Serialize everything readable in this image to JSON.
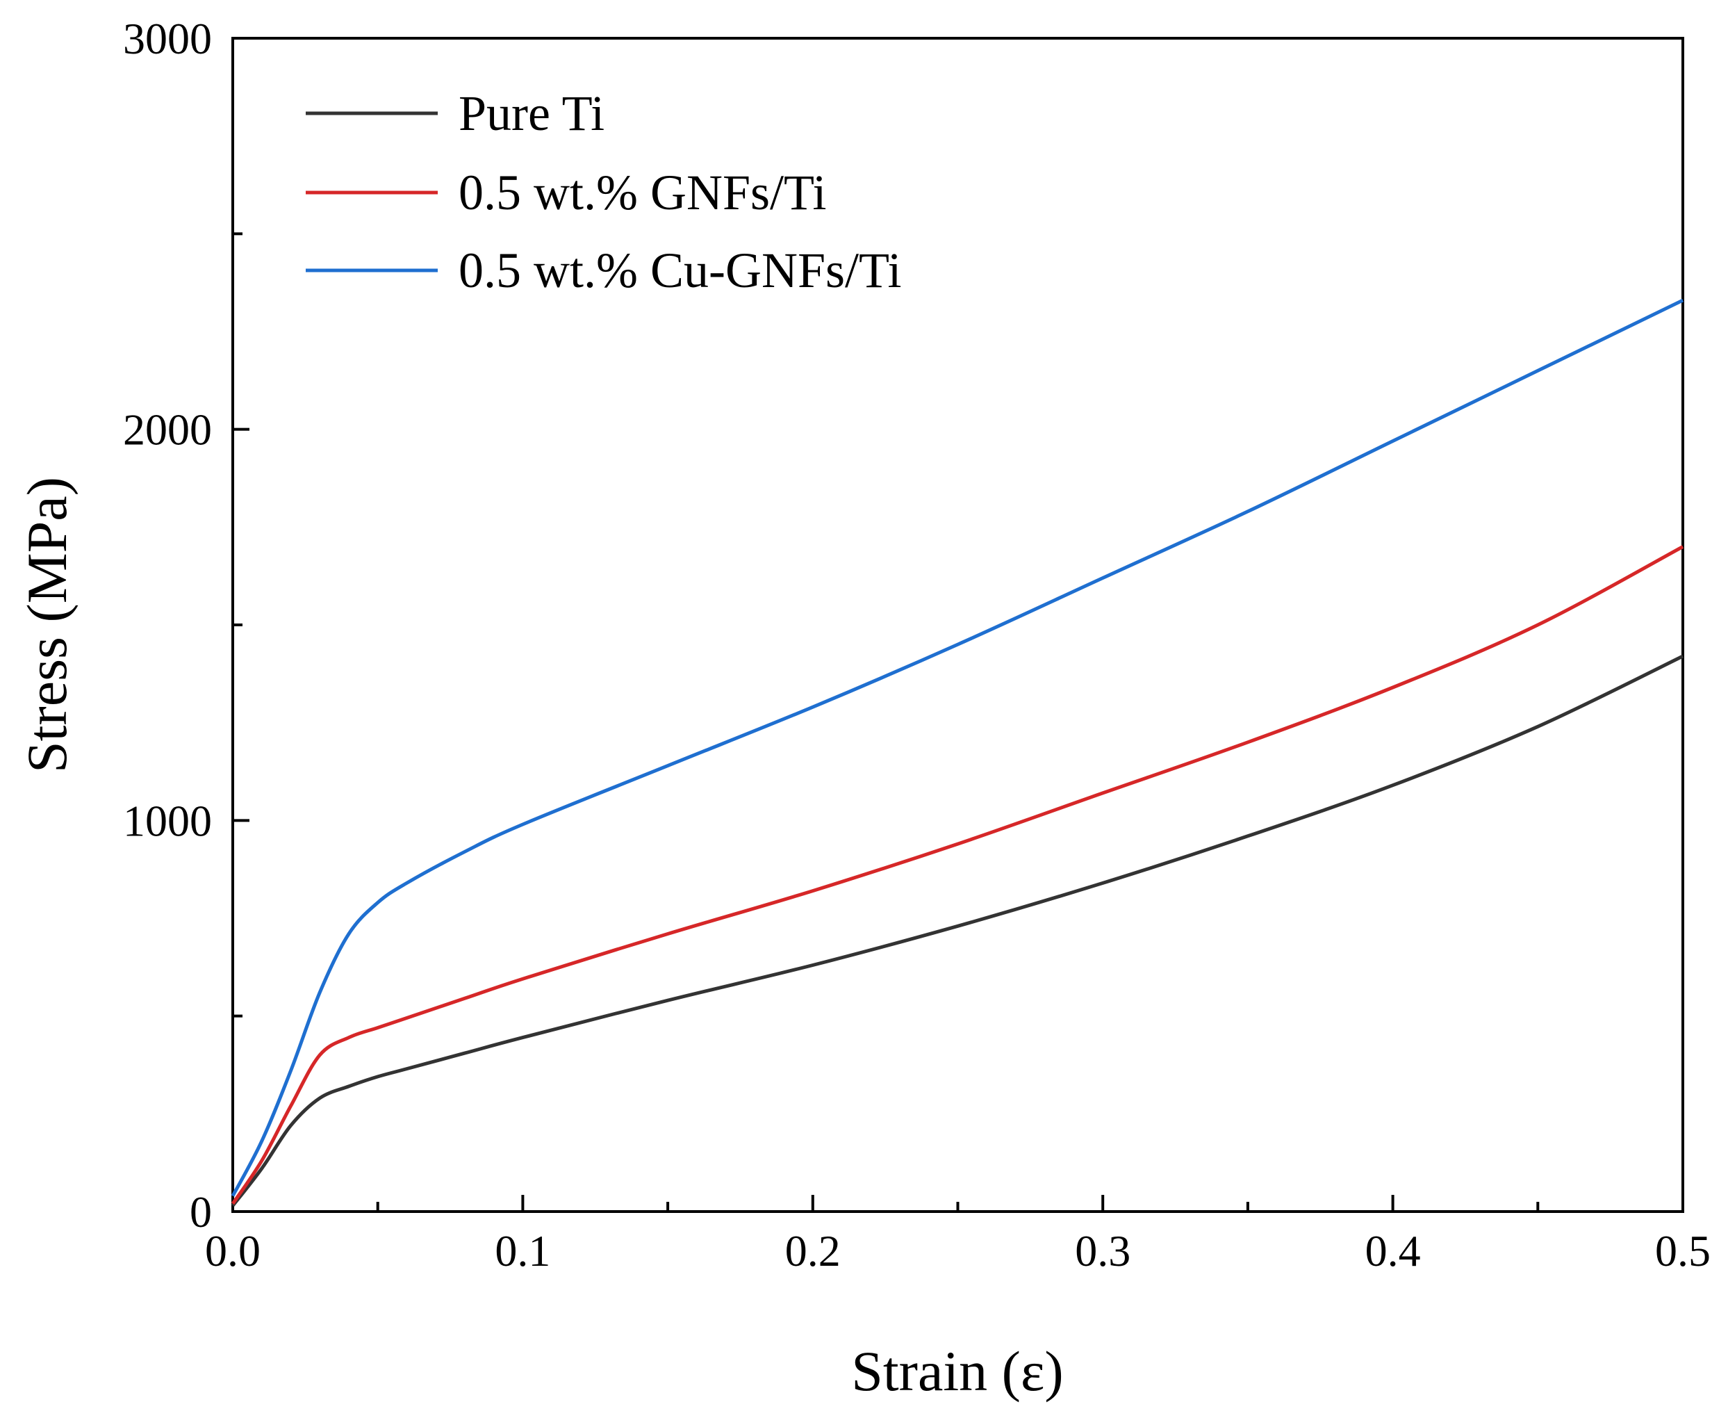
{
  "chart_data": {
    "type": "line",
    "title": "",
    "xlabel": "Strain (ε)",
    "ylabel": "Stress (MPa)",
    "xlim": [
      0.0,
      0.5
    ],
    "ylim": [
      0,
      3000
    ],
    "xticks": [
      0.0,
      0.1,
      0.2,
      0.3,
      0.4,
      0.5
    ],
    "xtick_labels": [
      "0.0",
      "0.1",
      "0.2",
      "0.3",
      "0.4",
      "0.5"
    ],
    "yticks": [
      0,
      1000,
      2000,
      3000
    ],
    "ytick_labels": [
      "0",
      "1000",
      "2000",
      "3000"
    ],
    "x_minor_ticks": [
      0.05,
      0.15,
      0.25,
      0.35,
      0.45
    ],
    "y_minor_ticks": [
      500,
      1500,
      2500
    ],
    "grid": false,
    "legend_position": "top-left",
    "series": [
      {
        "name": "Pure Ti",
        "color": "#333333",
        "points": [
          [
            0.0,
            15
          ],
          [
            0.01,
            110
          ],
          [
            0.02,
            220
          ],
          [
            0.03,
            290
          ],
          [
            0.04,
            320
          ],
          [
            0.05,
            345
          ],
          [
            0.06,
            365
          ],
          [
            0.08,
            405
          ],
          [
            0.1,
            445
          ],
          [
            0.15,
            540
          ],
          [
            0.2,
            630
          ],
          [
            0.25,
            730
          ],
          [
            0.3,
            840
          ],
          [
            0.35,
            960
          ],
          [
            0.4,
            1090
          ],
          [
            0.45,
            1240
          ],
          [
            0.5,
            1420
          ]
        ]
      },
      {
        "name": "0.5 wt.% GNFs/Ti",
        "color": "#d62728",
        "points": [
          [
            0.0,
            20
          ],
          [
            0.01,
            130
          ],
          [
            0.02,
            270
          ],
          [
            0.03,
            400
          ],
          [
            0.04,
            445
          ],
          [
            0.05,
            470
          ],
          [
            0.06,
            495
          ],
          [
            0.08,
            545
          ],
          [
            0.1,
            595
          ],
          [
            0.15,
            710
          ],
          [
            0.2,
            820
          ],
          [
            0.25,
            940
          ],
          [
            0.3,
            1070
          ],
          [
            0.35,
            1200
          ],
          [
            0.4,
            1340
          ],
          [
            0.45,
            1500
          ],
          [
            0.5,
            1700
          ]
        ]
      },
      {
        "name": "0.5 wt.% Cu-GNFs/Ti",
        "color": "#1f6fd0",
        "points": [
          [
            0.0,
            40
          ],
          [
            0.01,
            180
          ],
          [
            0.02,
            360
          ],
          [
            0.03,
            560
          ],
          [
            0.04,
            710
          ],
          [
            0.05,
            790
          ],
          [
            0.06,
            840
          ],
          [
            0.08,
            920
          ],
          [
            0.1,
            990
          ],
          [
            0.15,
            1140
          ],
          [
            0.2,
            1290
          ],
          [
            0.25,
            1450
          ],
          [
            0.3,
            1620
          ],
          [
            0.35,
            1790
          ],
          [
            0.4,
            1970
          ],
          [
            0.45,
            2150
          ],
          [
            0.5,
            2330
          ]
        ]
      }
    ]
  }
}
